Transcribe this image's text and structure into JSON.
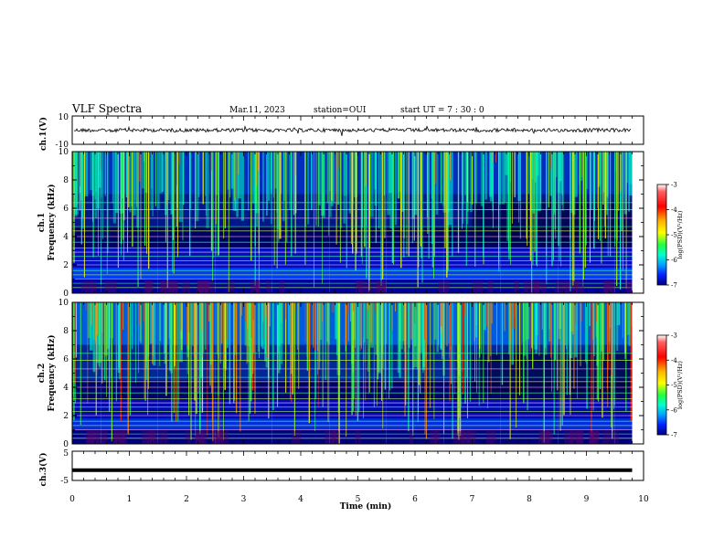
{
  "header": {
    "title": "VLF Spectra",
    "date": "Mar.11, 2023",
    "station": "station=OUI",
    "start_ut": "start  UT =   7 : 30 : 0"
  },
  "colors": {
    "trace": "#000000",
    "colormap": [
      "#7a0000",
      "#ff0000",
      "#ff8a00",
      "#ffff00",
      "#7fff3a",
      "#00ff8c",
      "#00e0ff",
      "#0070ff",
      "#0000d0",
      "#00004a"
    ]
  },
  "chart_data": [
    {
      "type": "line",
      "panel": "ch1-waveform",
      "ylabel": "ch.1(V)",
      "ylim": [
        -10,
        10
      ],
      "ytick_labels": [
        "10",
        "-10"
      ],
      "x": [
        0,
        10
      ],
      "values": [
        0,
        0
      ]
    },
    {
      "type": "heatmap",
      "panel": "ch1-spectrogram",
      "ylabel_lines": [
        "ch.1",
        "Frequency  (kHz)"
      ],
      "ylim": [
        0,
        10
      ],
      "xlim": [
        0,
        10
      ],
      "ytick_labels": [
        "0",
        "2",
        "4",
        "6",
        "8",
        "10"
      ],
      "colorbar": {
        "label": "log(PSD)(V²/Hz)",
        "range": [
          -7,
          -3
        ],
        "tick_labels": [
          "-3",
          "-4",
          "-5",
          "-6",
          "-7"
        ]
      }
    },
    {
      "type": "heatmap",
      "panel": "ch2-spectrogram",
      "ylabel_lines": [
        "ch.2",
        "Frequency  (kHz)"
      ],
      "ylim": [
        0,
        10
      ],
      "xlim": [
        0,
        10
      ],
      "ytick_labels": [
        "0",
        "2",
        "4",
        "6",
        "8",
        "10"
      ],
      "colorbar": {
        "label": "log(PSD)(V²/Hz)",
        "range": [
          -7,
          -3
        ],
        "tick_labels": [
          "-3",
          "-4",
          "-5",
          "-6",
          "-7"
        ]
      }
    },
    {
      "type": "line",
      "panel": "ch3-waveform",
      "ylabel": "ch.3(V)",
      "ylim": [
        -5,
        5
      ],
      "ytick_labels": [
        "5",
        "-5"
      ],
      "x": [
        0,
        9.8
      ],
      "values": [
        -1.5,
        -1.5
      ]
    }
  ],
  "xaxis": {
    "label": "Time  (min)",
    "range": [
      0,
      10
    ],
    "tick_labels": [
      "0",
      "1",
      "2",
      "3",
      "4",
      "5",
      "6",
      "7",
      "8",
      "9",
      "10"
    ]
  }
}
